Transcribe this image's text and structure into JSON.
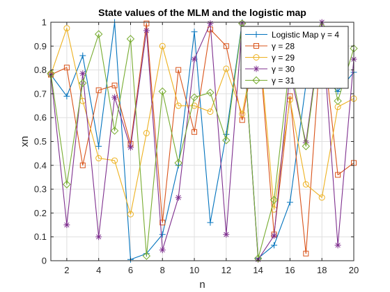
{
  "chart_data": {
    "type": "line",
    "title": "State values of the MLM and the logistic map",
    "xlabel": "n",
    "ylabel": "xn",
    "xlim": [
      1,
      20
    ],
    "ylim": [
      0,
      1
    ],
    "xticks": [
      "2",
      "4",
      "6",
      "8",
      "10",
      "12",
      "14",
      "16",
      "18",
      "20"
    ],
    "yticks": [
      "0",
      "0.1",
      "0.2",
      "0.3",
      "0.4",
      "0.5",
      "0.6",
      "0.7",
      "0.8",
      "0.9",
      "1"
    ],
    "grid": true,
    "legend_position": "top-right",
    "x": [
      1,
      2,
      3,
      4,
      5,
      6,
      7,
      8,
      9,
      10,
      11,
      12,
      13,
      14,
      15,
      16,
      17,
      18,
      19,
      20
    ],
    "series": [
      {
        "name": "Logistic Map γ = 4",
        "color": "#0072BD",
        "marker": "plus",
        "values": [
          0.78,
          0.69,
          0.86,
          0.48,
          1.0,
          0.005,
          0.03,
          0.11,
          0.4,
          0.96,
          0.16,
          0.53,
          1.0,
          0.01,
          0.065,
          0.245,
          0.74,
          0.77,
          0.71,
          0.79
        ]
      },
      {
        "name": "γ = 28",
        "color": "#D95319",
        "marker": "square",
        "values": [
          0.78,
          0.81,
          0.4,
          0.715,
          0.735,
          0.49,
          0.995,
          0.16,
          0.8,
          0.54,
          0.97,
          0.9,
          0.59,
          0.96,
          0.11,
          0.69,
          0.03,
          0.97,
          0.36,
          0.41
        ]
      },
      {
        "name": "γ = 29",
        "color": "#EDB120",
        "marker": "circle",
        "values": [
          0.78,
          0.975,
          0.67,
          0.43,
          0.42,
          0.195,
          0.535,
          0.9,
          0.65,
          0.65,
          0.625,
          0.805,
          0.615,
          0.97,
          0.215,
          0.675,
          0.32,
          0.265,
          0.645,
          0.68
        ]
      },
      {
        "name": "γ = 30",
        "color": "#7E2F8E",
        "marker": "asterisk",
        "values": [
          0.78,
          0.15,
          0.785,
          0.1,
          0.685,
          0.475,
          0.965,
          0.045,
          0.265,
          0.845,
          0.995,
          0.11,
          0.995,
          0.005,
          0.105,
          0.79,
          0.495,
          1.0,
          0.065,
          0.845
        ]
      },
      {
        "name": "γ = 31",
        "color": "#77AC30",
        "marker": "diamond",
        "values": [
          0.785,
          0.32,
          0.745,
          0.95,
          0.545,
          0.93,
          0.02,
          0.71,
          0.41,
          0.685,
          0.705,
          0.505,
          0.995,
          0.01,
          0.255,
          0.835,
          0.48,
          0.98,
          0.67,
          0.89
        ]
      }
    ]
  }
}
